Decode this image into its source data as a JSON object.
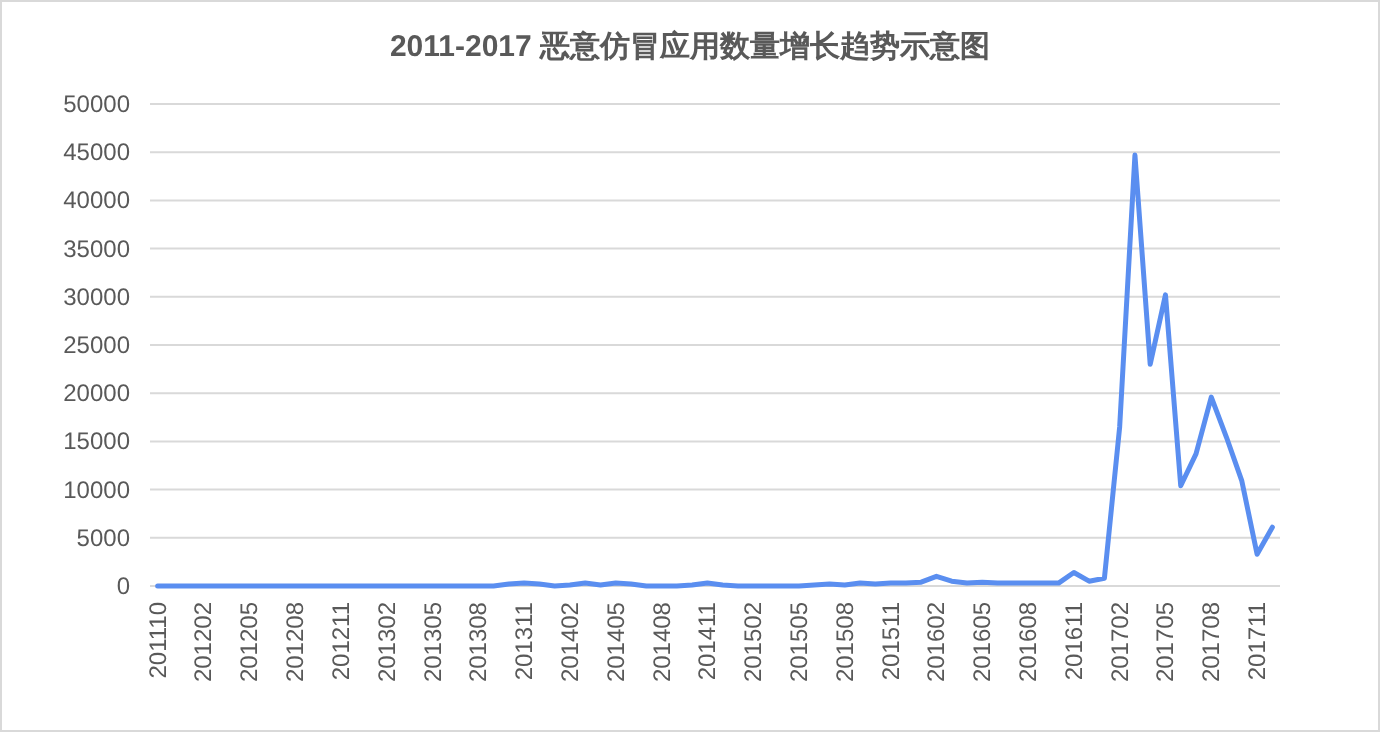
{
  "chart_data": {
    "type": "line",
    "title": "2011-2017 恶意仿冒应用数量增长趋势示意图",
    "categories": [
      "201110",
      null,
      null,
      "201202",
      null,
      null,
      "201205",
      null,
      null,
      "201208",
      null,
      null,
      "201211",
      null,
      null,
      "201302",
      null,
      null,
      "201305",
      null,
      null,
      "201308",
      null,
      null,
      "201311",
      null,
      null,
      "201402",
      null,
      null,
      "201405",
      null,
      null,
      "201408",
      null,
      null,
      "201411",
      null,
      null,
      "201502",
      null,
      null,
      "201505",
      null,
      null,
      "201508",
      null,
      null,
      "201511",
      null,
      null,
      "201602",
      null,
      null,
      "201605",
      null,
      null,
      "201608",
      null,
      null,
      "201611",
      null,
      null,
      "201702",
      null,
      null,
      "201705",
      null,
      null,
      "201708",
      null,
      null,
      "201711",
      null
    ],
    "series": [
      {
        "color": "#5a8ef0",
        "values": [
          0,
          0,
          0,
          0,
          0,
          0,
          0,
          0,
          0,
          0,
          0,
          0,
          0,
          0,
          0,
          0,
          0,
          0,
          0,
          0,
          0,
          0,
          0,
          200,
          300,
          200,
          0,
          100,
          300,
          100,
          300,
          200,
          0,
          0,
          0,
          100,
          300,
          100,
          0,
          0,
          0,
          0,
          0,
          100,
          200,
          100,
          300,
          200,
          300,
          300,
          400,
          1000,
          500,
          300,
          400,
          300,
          300,
          300,
          300,
          300,
          1400,
          500,
          800,
          16500,
          44700,
          23000,
          30200,
          10400,
          13700,
          19600,
          15400,
          10900,
          3300,
          6100
        ]
      }
    ],
    "ylim": [
      0,
      50000
    ],
    "yticks": [
      0,
      5000,
      10000,
      15000,
      20000,
      25000,
      30000,
      35000,
      40000,
      45000,
      50000
    ],
    "grid": "y",
    "marker": "none",
    "line_style": "solid"
  }
}
